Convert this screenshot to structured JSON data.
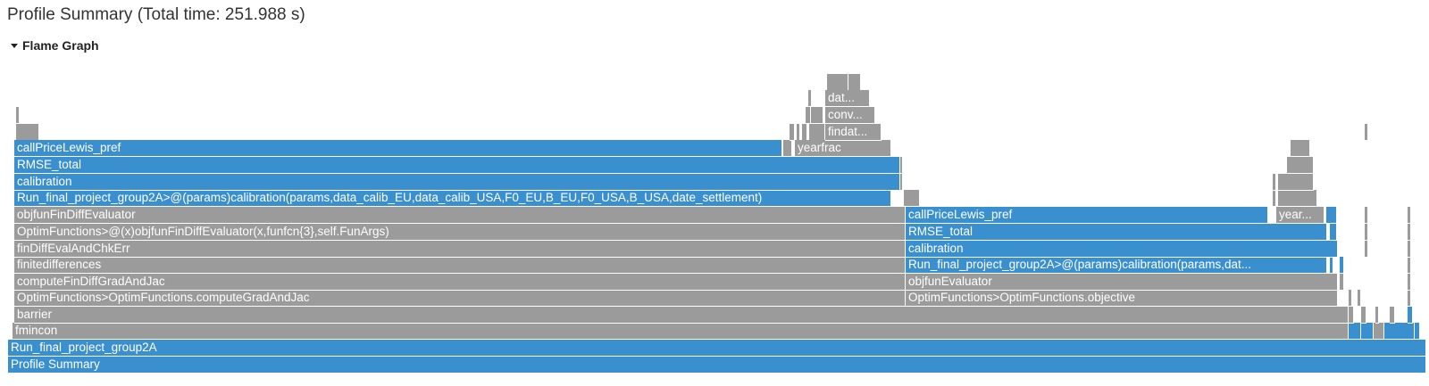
{
  "page": {
    "title": "Profile Summary (Total time: 251.988 s)"
  },
  "section": {
    "label": "Flame Graph",
    "expanded": true
  },
  "colors": {
    "blue": "#3a8fcf",
    "gray": "#9b9b9b"
  },
  "frames": [
    {
      "label": "Profile Summary",
      "c": "b"
    },
    {
      "label": "Run_final_project_group2A",
      "c": "b"
    },
    {
      "label": "fmincon",
      "c": "g"
    },
    {
      "label": "barrier",
      "c": "g"
    },
    {
      "label": "OptimFunctions>OptimFunctions.computeGradAndJac",
      "c": "g"
    },
    {
      "label": "computeFinDiffGradAndJac",
      "c": "g"
    },
    {
      "label": "finitedifferences",
      "c": "g"
    },
    {
      "label": "finDiffEvalAndChkErr",
      "c": "g"
    },
    {
      "label": "OptimFunctions>@(x)objfunFinDiffEvaluator(x,funfcn{3},self.FunArgs)",
      "c": "g"
    },
    {
      "label": "objfunFinDiffEvaluator",
      "c": "g"
    },
    {
      "label": "Run_final_project_group2A>@(params)calibration(params,data_calib_EU,data_calib_USA,F0_EU,B_EU,F0_USA,B_USA,date_settlement)",
      "c": "b"
    },
    {
      "label": "calibration",
      "c": "b"
    },
    {
      "label": "RMSE_total",
      "c": "b"
    },
    {
      "label": "callPriceLewis_pref",
      "c": "b"
    },
    {
      "label": "yearfrac",
      "c": "g"
    },
    {
      "label": "findat...",
      "c": "g"
    },
    {
      "label": "conv...",
      "c": "g"
    },
    {
      "label": "dat...",
      "c": "g"
    },
    {
      "label": "OptimFunctions>OptimFunctions.objective",
      "c": "g"
    },
    {
      "label": "objfunEvaluator",
      "c": "g"
    },
    {
      "label": "Run_final_project_group2A>@(params)calibration(params,dat...",
      "c": "b"
    },
    {
      "label": "calibration",
      "c": "b"
    },
    {
      "label": "RMSE_total",
      "c": "b"
    },
    {
      "label": "callPriceLewis_pref",
      "c": "b"
    },
    {
      "label": "year...",
      "c": "g"
    }
  ]
}
